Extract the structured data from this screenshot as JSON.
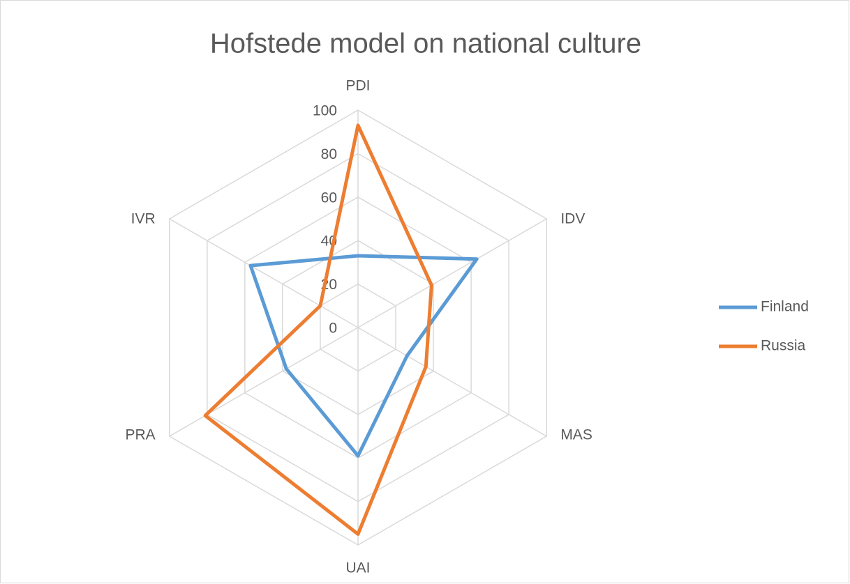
{
  "chart_data": {
    "type": "radar",
    "title": "Hofstede model on national culture",
    "categories": [
      "PDI",
      "IDV",
      "MAS",
      "UAI",
      "PRA",
      "IVR"
    ],
    "series": [
      {
        "name": "Finland",
        "color": "#5b9bd5",
        "values": [
          33,
          63,
          26,
          59,
          38,
          57
        ]
      },
      {
        "name": "Russia",
        "color": "#ed7d31",
        "values": [
          93,
          39,
          36,
          95,
          81,
          20
        ]
      }
    ],
    "ylim": [
      0,
      100
    ],
    "yticks": [
      0,
      20,
      40,
      60,
      80,
      100
    ],
    "grid": true,
    "legend": "right"
  }
}
